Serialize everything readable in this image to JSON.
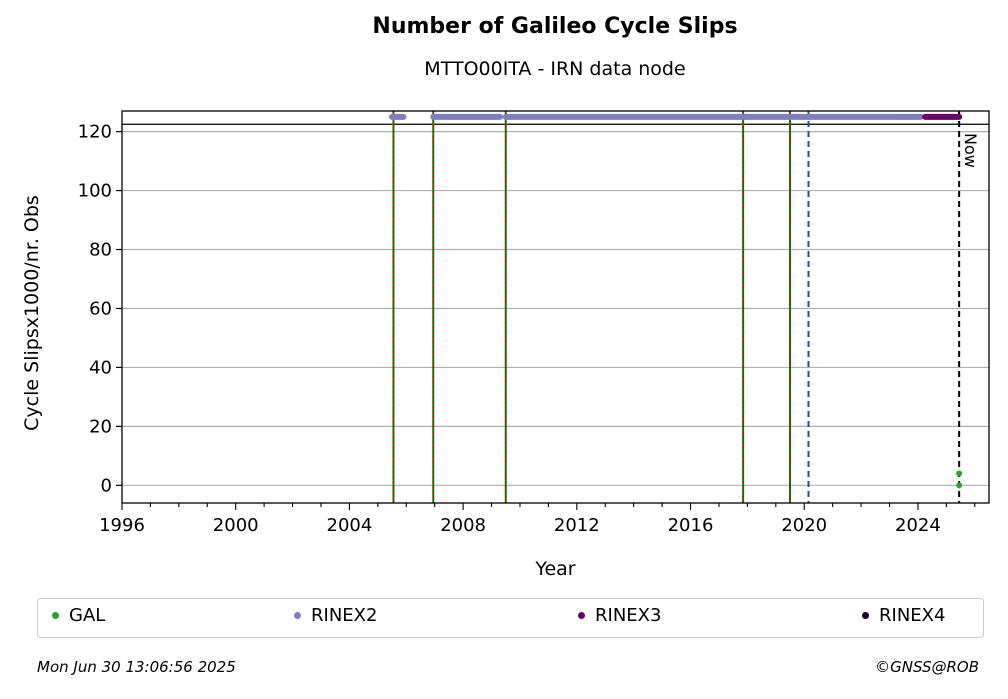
{
  "chart_data": {
    "type": "scatter",
    "title": "Number of Galileo Cycle Slips",
    "subtitle": "MTTO00ITA - IRN data node",
    "xlabel": "Year",
    "ylabel": "Cycle Slipsx1000/nr. Obs",
    "xlim": [
      1996,
      2026.5
    ],
    "ylim": [
      -6,
      127
    ],
    "xticks": [
      1996,
      2000,
      2004,
      2008,
      2012,
      2016,
      2020,
      2024
    ],
    "yticks": [
      0,
      20,
      40,
      60,
      80,
      100,
      120
    ],
    "grid": "horizontal",
    "series": [
      {
        "name": "GAL",
        "color": "#2ca02c",
        "points": [
          [
            2025.45,
            4
          ],
          [
            2025.45,
            0
          ]
        ]
      },
      {
        "name": "RINEX2",
        "color": "#7f7fbf",
        "segments": [
          [
            2005.5,
            2005.9
          ],
          [
            2006.95,
            2009.3
          ],
          [
            2009.5,
            2024.1
          ]
        ],
        "y": 125
      },
      {
        "name": "RINEX3",
        "color": "#6b0066",
        "segments": [
          [
            2024.25,
            2025.45
          ]
        ],
        "y": 125
      },
      {
        "name": "RINEX4",
        "color": "#1a0022",
        "points": []
      }
    ],
    "event_lines_red_green": [
      2005.55,
      2006.95,
      2009.5,
      2017.85,
      2019.5
    ],
    "event_line_blue_dashed": 2020.15,
    "threshold_line_y": 122.5,
    "now_line": {
      "x": 2025.45,
      "label": "Now"
    },
    "legend_placement": "bottom"
  },
  "legend": [
    {
      "label": "GAL",
      "color": "#2ca02c"
    },
    {
      "label": "RINEX2",
      "color": "#7f7fbf"
    },
    {
      "label": "RINEX3",
      "color": "#6b0066"
    },
    {
      "label": "RINEX4",
      "color": "#1a0022"
    }
  ],
  "footer": {
    "timestamp": "Mon Jun 30 13:06:56 2025",
    "credit": "©GNSS@ROB"
  }
}
